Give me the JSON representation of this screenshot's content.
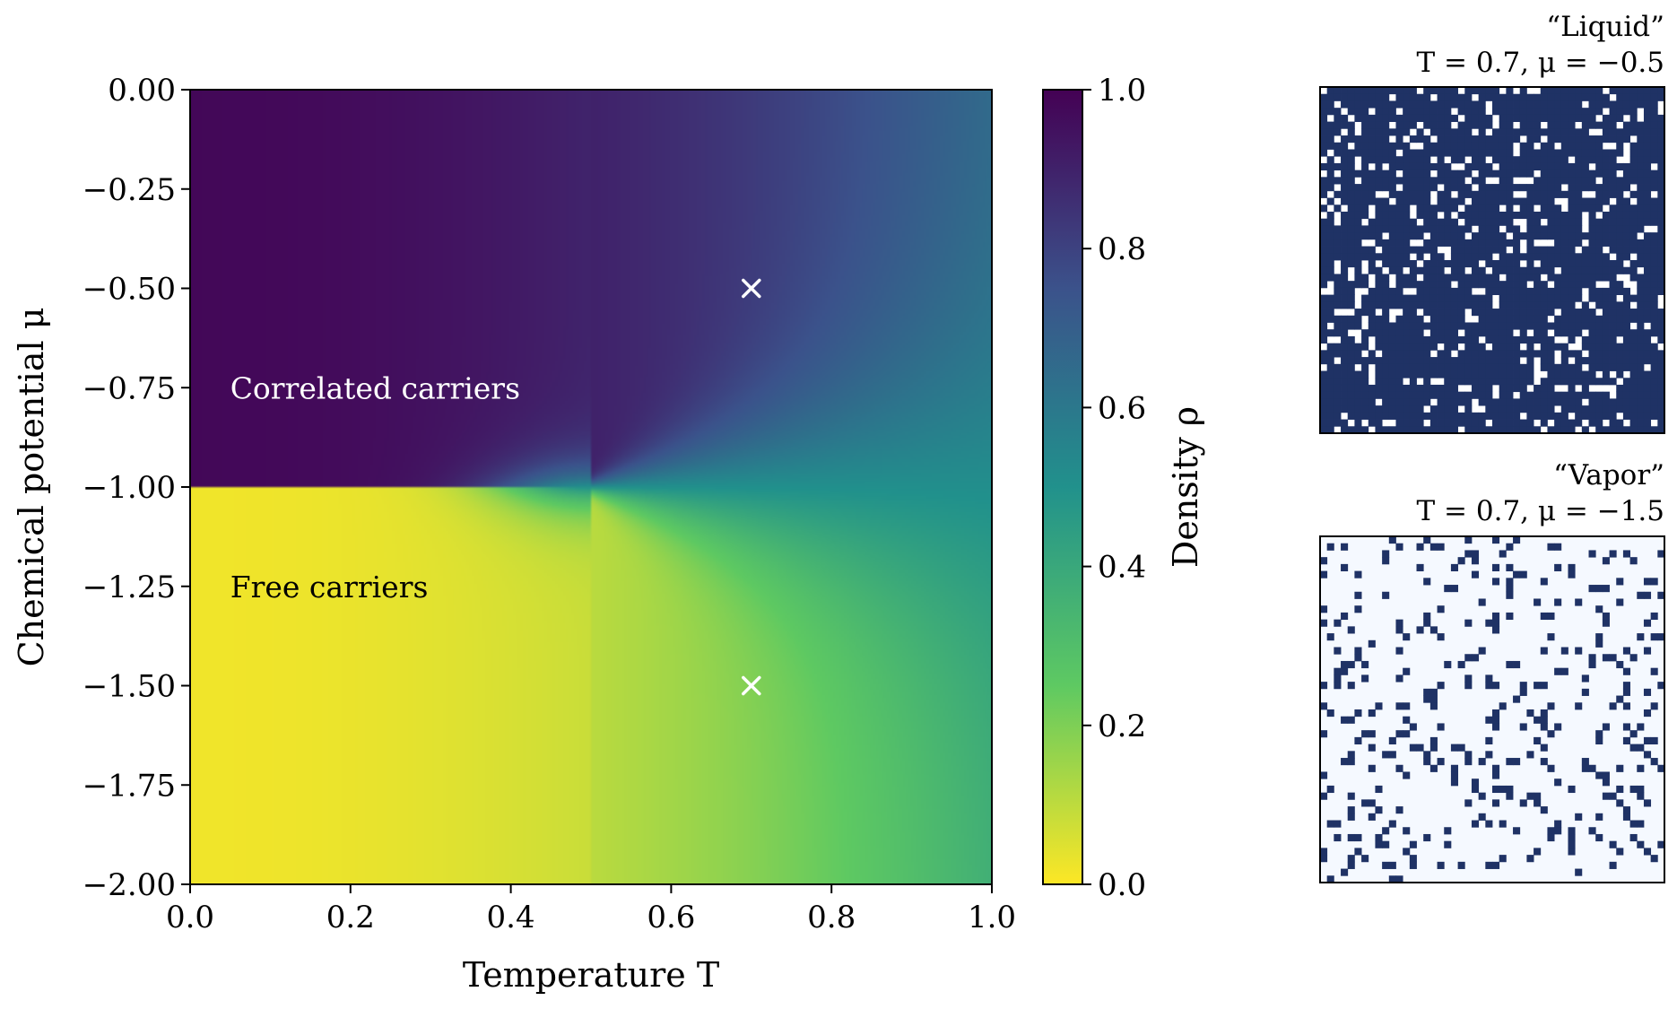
{
  "chart_data": [
    {
      "type": "heatmap",
      "title": "",
      "xlabel": "Temperature T",
      "ylabel": "Chemical potential μ",
      "xlim": [
        0.0,
        1.0
      ],
      "ylim": [
        -2.0,
        0.0
      ],
      "x_ticks": [
        "0.0",
        "0.2",
        "0.4",
        "0.6",
        "0.8",
        "1.0"
      ],
      "y_ticks": [
        "0.00",
        "−0.25",
        "−0.50",
        "−0.75",
        "−1.00",
        "−1.25",
        "−1.50",
        "−1.75",
        "−2.00"
      ],
      "grid": false,
      "colormap": "viridis_r",
      "colorbar": {
        "label": "Density ρ",
        "range": [
          0.0,
          1.0
        ],
        "ticks": [
          "0.0",
          "0.2",
          "0.4",
          "0.6",
          "0.8",
          "1.0"
        ]
      },
      "phase_boundary": {
        "mu": -1.0,
        "T_end": 0.5
      },
      "annotations": [
        {
          "text": "Correlated carriers",
          "T": 0.05,
          "mu": -0.75,
          "color": "#ffffff"
        },
        {
          "text": "Free carriers",
          "T": 0.05,
          "mu": -1.25,
          "color": "#000000"
        }
      ],
      "markers": [
        {
          "T": 0.7,
          "mu": -0.5,
          "symbol": "×",
          "color": "#ffffff"
        },
        {
          "T": 0.7,
          "mu": -1.5,
          "symbol": "×",
          "color": "#ffffff"
        }
      ]
    },
    {
      "type": "heatmap",
      "title": "“Liquid”",
      "subtitle": "T = 0.7, μ = −0.5",
      "grid_size": 50,
      "filled_color": "#1f3265",
      "empty_color": "#ffffff",
      "occupied_fraction": 0.85
    },
    {
      "type": "heatmap",
      "title": "“Vapor”",
      "subtitle": "T = 0.7, μ = −1.5",
      "grid_size": 50,
      "filled_color": "#1f3265",
      "empty_color": "#f5f9ff",
      "occupied_fraction": 0.14
    }
  ]
}
